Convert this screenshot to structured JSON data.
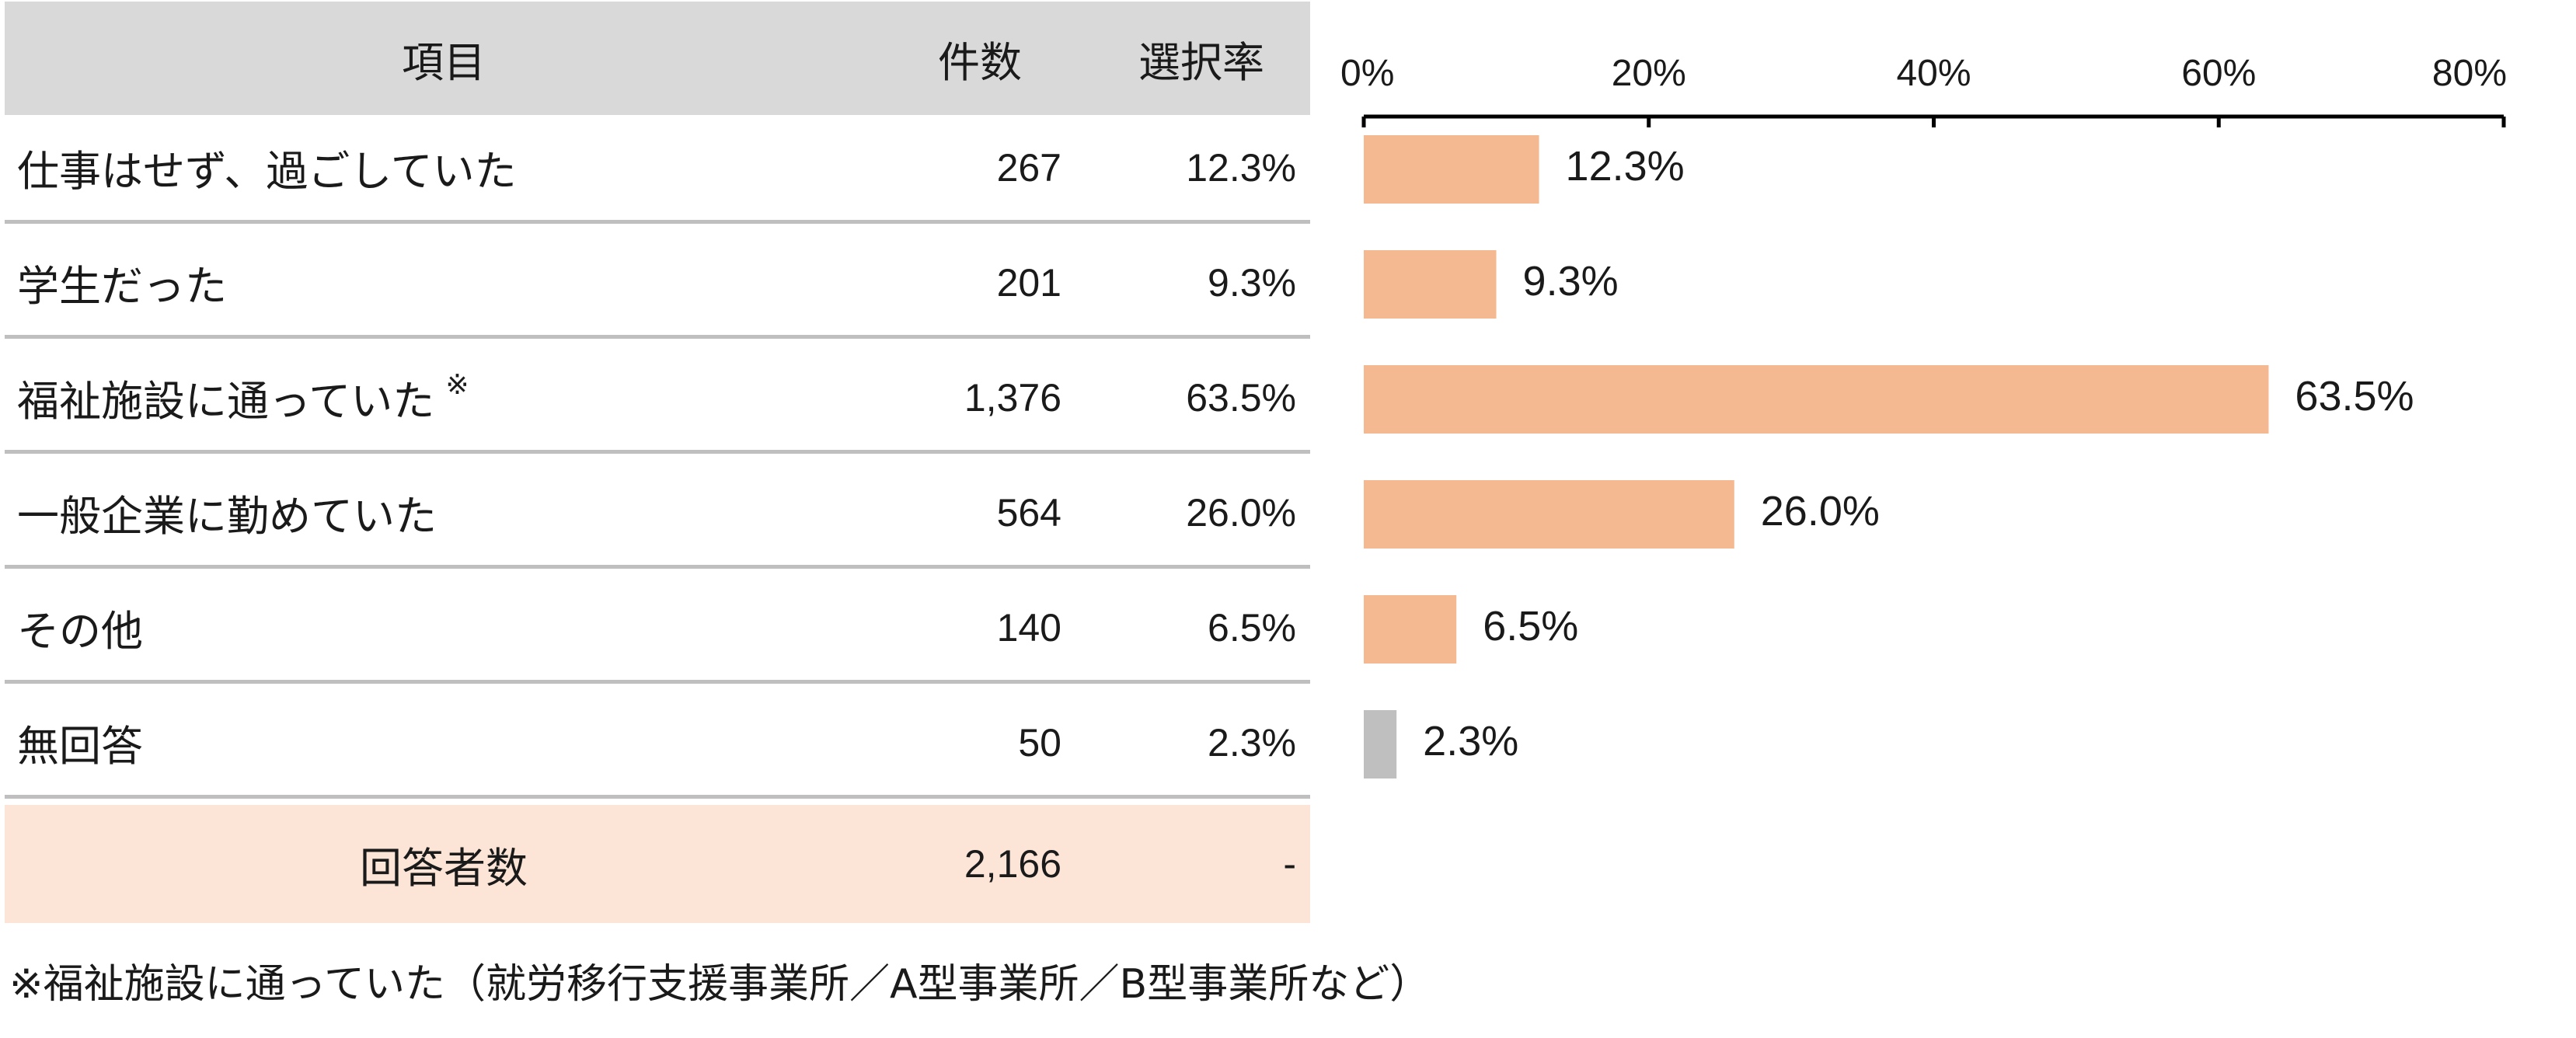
{
  "table": {
    "headers": {
      "item": "項目",
      "count": "件数",
      "rate": "選択率"
    },
    "rows": [
      {
        "label": "仕事はせず、過ごしていた",
        "count": "267",
        "rate": "12.3%"
      },
      {
        "label": "学生だった",
        "count": "201",
        "rate": "9.3%"
      },
      {
        "label": "福祉施設に通っていた",
        "mark": "※",
        "count": "1,376",
        "rate": "63.5%"
      },
      {
        "label": "一般企業に勤めていた",
        "count": "564",
        "rate": "26.0%"
      },
      {
        "label": "その他",
        "count": "140",
        "rate": "6.5%"
      },
      {
        "label": "無回答",
        "count": "50",
        "rate": "2.3%"
      }
    ],
    "total": {
      "label": "回答者数",
      "count": "2,166",
      "rate": "-"
    }
  },
  "footnote": "※福祉施設に通っていた（就労移行支援事業所／A型事業所／B型事業所など）",
  "chart_data": {
    "type": "bar",
    "orientation": "horizontal",
    "categories": [
      "仕事はせず、過ごしていた",
      "学生だった",
      "福祉施設に通っていた",
      "一般企業に勤めていた",
      "その他",
      "無回答"
    ],
    "values": [
      12.3,
      9.3,
      63.5,
      26.0,
      6.5,
      2.3
    ],
    "value_labels": [
      "12.3%",
      "9.3%",
      "63.5%",
      "26.0%",
      "6.5%",
      "2.3%"
    ],
    "xlim": [
      0,
      80
    ],
    "ticks": [
      0,
      20,
      40,
      60,
      80
    ],
    "tick_labels": [
      "0%",
      "20%",
      "40%",
      "60%",
      "80%"
    ],
    "axis_position": "top",
    "grid": false,
    "colors": {
      "bar": "#f4b990",
      "no_answer": "#bfbfbf",
      "axis": "#000000"
    },
    "no_answer_index": 5
  }
}
